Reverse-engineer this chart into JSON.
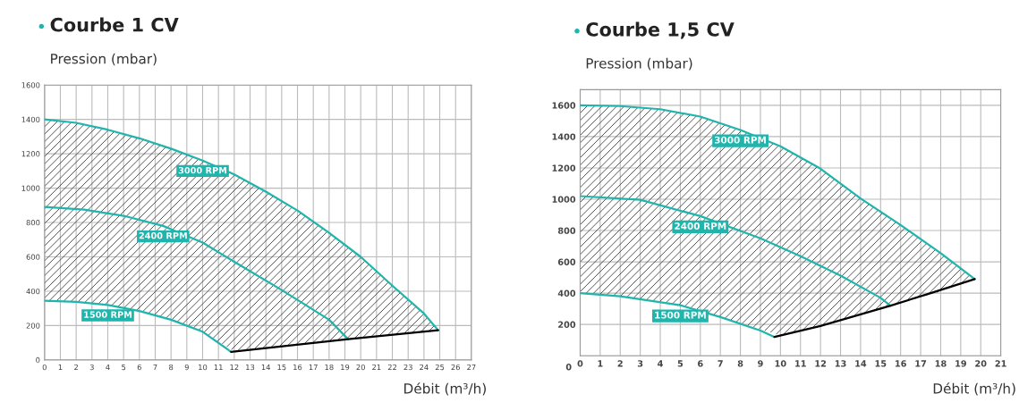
{
  "chart_data": [
    {
      "type": "line",
      "title": "Courbe 1 CV",
      "ylabel": "Pression (mbar)",
      "xlabel": "Débit (m³/h)",
      "xlim": [
        0,
        27
      ],
      "xticks": [
        0,
        1,
        2,
        3,
        4,
        5,
        6,
        7,
        8,
        9,
        10,
        11,
        12,
        13,
        14,
        15,
        16,
        17,
        18,
        19,
        20,
        21,
        22,
        23,
        24,
        25,
        26,
        27
      ],
      "ylim": [
        0,
        1600
      ],
      "yticks": [
        0,
        200,
        400,
        600,
        800,
        1000,
        1200,
        1400,
        1600
      ],
      "grid": true,
      "legend": false,
      "marker": "none",
      "line_style": "solid",
      "series": [
        {
          "name": "3000 RPM",
          "color": "#1fb5ad",
          "x": [
            0,
            2,
            4,
            6,
            8,
            10,
            12,
            14,
            16,
            18,
            20,
            22,
            24,
            24.9
          ],
          "values": [
            1400,
            1380,
            1340,
            1290,
            1230,
            1160,
            1080,
            980,
            870,
            740,
            600,
            432,
            270,
            173
          ],
          "upper": [
            1400,
            1380,
            1340,
            1290,
            1230,
            1160,
            1080,
            980,
            870,
            740,
            600,
            432,
            270,
            173
          ],
          "lower": [
            345,
            338,
            320,
            285,
            234,
            164,
            49,
            67,
            87,
            109,
            128,
            147,
            164,
            173
          ]
        },
        {
          "name": "2400 RPM",
          "color": "#1fb5ad",
          "x": [
            0,
            2.5,
            5,
            7.5,
            10,
            12,
            15,
            18,
            19.2
          ],
          "values": [
            890,
            875,
            839,
            780,
            683,
            571,
            407,
            234,
            121
          ]
        },
        {
          "name": "1500 RPM",
          "color": "#1fb5ad",
          "x": [
            0,
            2,
            4,
            6,
            8,
            10,
            11.8
          ],
          "values": [
            345,
            338,
            320,
            285,
            234,
            164,
            47
          ]
        },
        {
          "color": "#000000",
          "x": [
            11.8,
            19.2,
            24.9
          ],
          "values": [
            47,
            121,
            173
          ]
        }
      ]
    },
    {
      "type": "line",
      "title": "Courbe 1,5 CV",
      "ylabel": "Pression (mbar)",
      "xlabel": "Débit (m³/h)",
      "xlim": [
        0,
        21
      ],
      "xticks": [
        0,
        1,
        2,
        3,
        4,
        5,
        6,
        7,
        8,
        9,
        10,
        11,
        12,
        13,
        14,
        15,
        16,
        17,
        18,
        19,
        20,
        21
      ],
      "ylim": [
        0,
        1700
      ],
      "yticks": [
        {
          "value": 0,
          "label": null
        },
        200,
        400,
        600,
        800,
        1000,
        1200,
        1400,
        1600
      ],
      "grid": true,
      "legend": false,
      "marker": "none",
      "line_style": "solid",
      "annotations": [
        "0"
      ],
      "series": [
        {
          "name": "3000 RPM",
          "color": "#1fb5ad",
          "x": [
            0,
            2,
            4,
            6,
            8,
            10,
            12,
            14,
            16,
            18,
            19.7
          ],
          "values": [
            1600,
            1595,
            1575,
            1528,
            1442,
            1338,
            1195,
            1005,
            835,
            655,
            490
          ],
          "upper": [
            1600,
            1595,
            1575,
            1528,
            1442,
            1338,
            1195,
            1005,
            835,
            655,
            490
          ],
          "lower": [
            400,
            380,
            345,
            287,
            205,
            130,
            190,
            265,
            335,
            410,
            490
          ]
        },
        {
          "name": "2400 RPM",
          "color": "#1fb5ad",
          "x": [
            0,
            3,
            6,
            9,
            11,
            13,
            15,
            15.5
          ],
          "values": [
            1020,
            996,
            892,
            750,
            636,
            512,
            370,
            319
          ]
        },
        {
          "name": "1500 RPM",
          "color": "#1fb5ad",
          "x": [
            0,
            2,
            5,
            7,
            9,
            9.7
          ],
          "values": [
            400,
            380,
            323,
            247,
            161,
            120
          ]
        },
        {
          "color": "#000000",
          "x": [
            9.7,
            12,
            15.5,
            17.5,
            19.7
          ],
          "values": [
            120,
            190,
            320,
            400,
            490
          ]
        }
      ]
    }
  ]
}
